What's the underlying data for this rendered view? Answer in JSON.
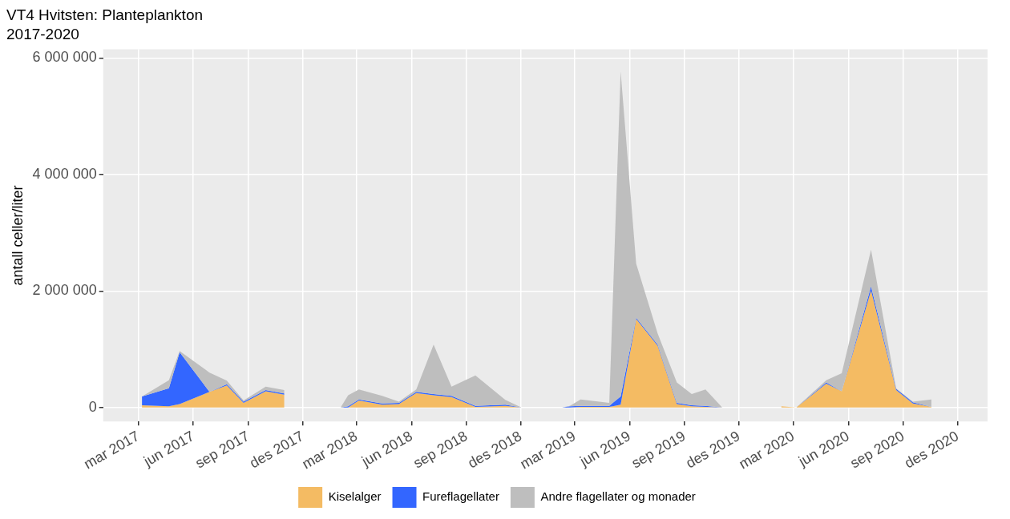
{
  "chart_data": {
    "type": "area",
    "title": "VT4 Hvitsten: Planteplankton",
    "subtitle": "2017-2020",
    "ylabel": "antall celler/liter",
    "stacked": true,
    "grid": true,
    "legend": "bottom",
    "x": [
      "2017-03-07",
      "2017-04-21",
      "2017-05-09",
      "2017-06-28",
      "2017-07-27",
      "2017-08-24",
      "2017-09-30",
      "2017-10-31",
      "2018-01-01",
      "2018-02-03",
      "2018-02-15",
      "2018-03-05",
      "2018-04-13",
      "2018-05-11",
      "2018-06-09",
      "2018-07-08",
      "2018-08-07",
      "2018-09-16",
      "2018-11-05",
      "2018-12-02",
      "2019-01-10",
      "2019-02-08",
      "2019-02-21",
      "2019-03-11",
      "2019-04-28",
      "2019-05-17",
      "2019-06-12",
      "2019-07-18",
      "2019-08-19",
      "2019-09-13",
      "2019-10-06",
      "2019-11-03",
      "2020-01-01",
      "2020-02-10",
      "2020-03-06",
      "2020-04-25",
      "2020-05-21",
      "2020-07-09",
      "2020-08-20",
      "2020-09-17",
      "2020-10-18"
    ],
    "series": [
      {
        "name": "Kiselalger",
        "color": "#f4bb63",
        "values": [
          40000,
          20000,
          60000,
          270000,
          380000,
          80000,
          280000,
          220000,
          null,
          0,
          0,
          120000,
          50000,
          60000,
          250000,
          210000,
          180000,
          10000,
          30000,
          0,
          null,
          0,
          0,
          10000,
          10000,
          50000,
          1520000,
          1060000,
          60000,
          20000,
          10000,
          0,
          null,
          20000,
          0,
          410000,
          280000,
          2010000,
          300000,
          70000,
          10000
        ]
      },
      {
        "name": "Fureflagellater",
        "color": "#3366ff",
        "values": [
          150000,
          310000,
          890000,
          0,
          20000,
          20000,
          20000,
          20000,
          null,
          0,
          20000,
          20000,
          20000,
          20000,
          20000,
          20000,
          20000,
          20000,
          20000,
          0,
          null,
          0,
          20000,
          20000,
          20000,
          140000,
          20000,
          20000,
          20000,
          20000,
          20000,
          0,
          null,
          0,
          0,
          20000,
          0,
          70000,
          20000,
          20000,
          0
        ]
      },
      {
        "name": "Andre flagellater og monader",
        "color": "#bebebe",
        "values": [
          0,
          140000,
          20000,
          330000,
          60000,
          20000,
          60000,
          60000,
          null,
          10000,
          190000,
          170000,
          130000,
          20000,
          40000,
          850000,
          160000,
          520000,
          80000,
          0,
          null,
          0,
          10000,
          110000,
          50000,
          5580000,
          930000,
          190000,
          350000,
          190000,
          280000,
          0,
          null,
          0,
          0,
          40000,
          310000,
          630000,
          10000,
          10000,
          130000
        ]
      }
    ],
    "xlim": [
      "2017-01-01",
      "2021-01-20"
    ],
    "xticks": [
      {
        "value": "2017-03-01",
        "label": "mar 2017"
      },
      {
        "value": "2017-06-01",
        "label": "jun 2017"
      },
      {
        "value": "2017-09-01",
        "label": "sep 2017"
      },
      {
        "value": "2017-12-01",
        "label": "des 2017"
      },
      {
        "value": "2018-03-01",
        "label": "mar 2018"
      },
      {
        "value": "2018-06-01",
        "label": "jun 2018"
      },
      {
        "value": "2018-09-01",
        "label": "sep 2018"
      },
      {
        "value": "2018-12-01",
        "label": "des 2018"
      },
      {
        "value": "2019-03-01",
        "label": "mar 2019"
      },
      {
        "value": "2019-06-01",
        "label": "jun 2019"
      },
      {
        "value": "2019-09-01",
        "label": "sep 2019"
      },
      {
        "value": "2019-12-01",
        "label": "des 2019"
      },
      {
        "value": "2020-03-01",
        "label": "mar 2020"
      },
      {
        "value": "2020-06-01",
        "label": "jun 2020"
      },
      {
        "value": "2020-09-01",
        "label": "sep 2020"
      },
      {
        "value": "2020-12-01",
        "label": "des 2020"
      }
    ],
    "ylim": [
      -240000,
      6150000
    ],
    "yticks": [
      {
        "value": 0,
        "label": "0"
      },
      {
        "value": 2000000,
        "label": "2 000 000"
      },
      {
        "value": 4000000,
        "label": "4 000 000"
      },
      {
        "value": 6000000,
        "label": "6 000 000"
      }
    ]
  }
}
